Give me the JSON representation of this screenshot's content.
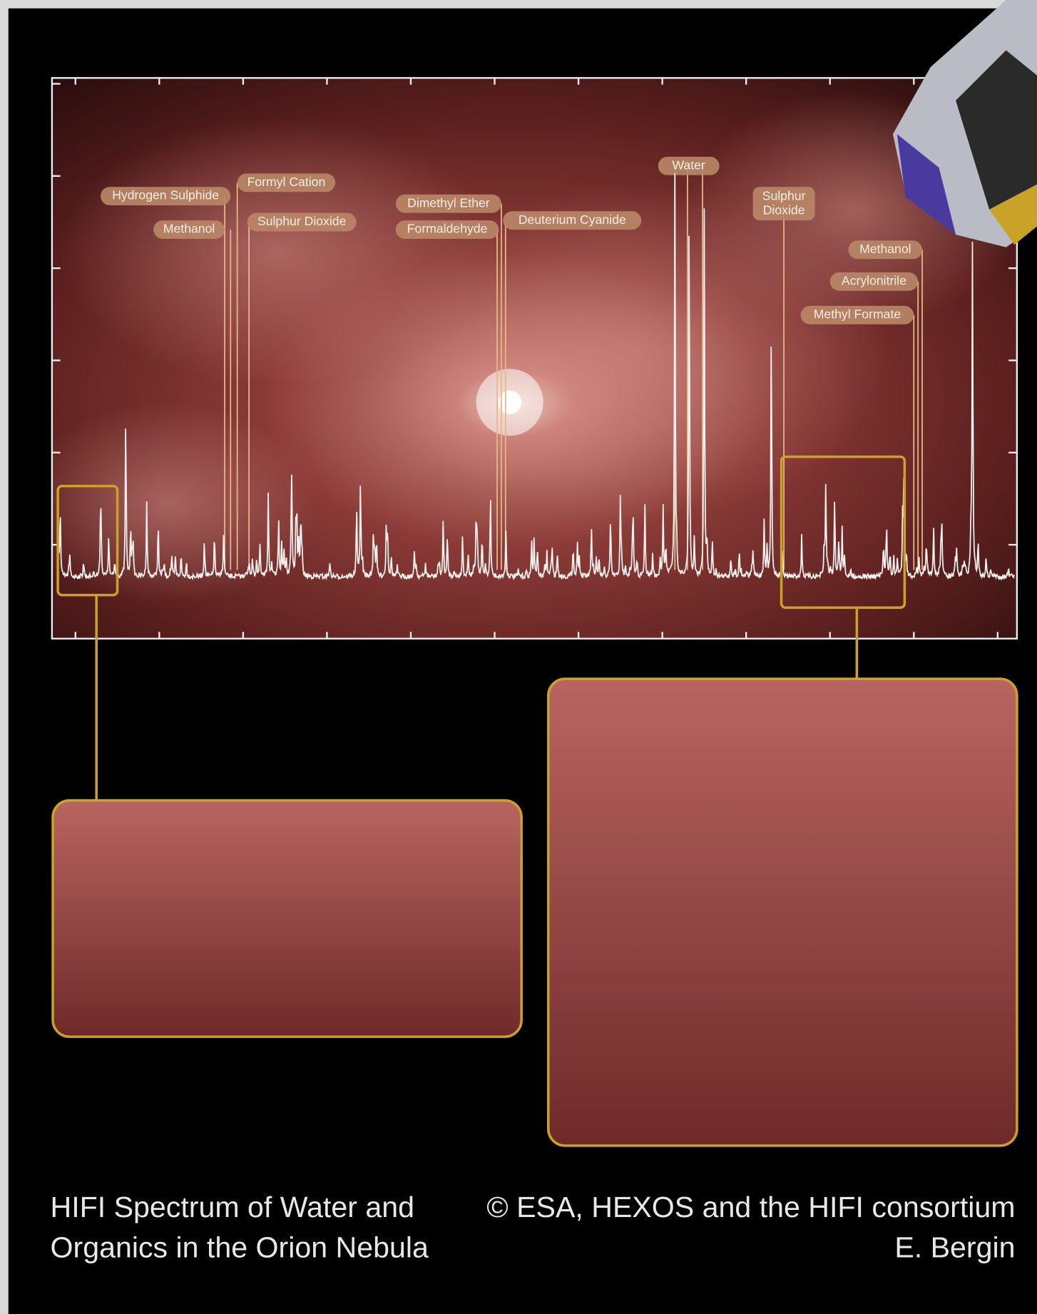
{
  "labels": [
    {
      "lines": [
        "Hydrogen Sulphide"
      ]
    },
    {
      "lines": [
        "Formyl Cation"
      ]
    },
    {
      "lines": [
        "Methanol"
      ]
    },
    {
      "lines": [
        "Sulphur Dioxide"
      ]
    },
    {
      "lines": [
        "Dimethyl Ether"
      ]
    },
    {
      "lines": [
        "Formaldehyde"
      ]
    },
    {
      "lines": [
        "Deuterium Cyanide"
      ]
    },
    {
      "lines": [
        "Water"
      ]
    },
    {
      "lines": [
        "Sulphur",
        "Dioxide"
      ]
    },
    {
      "lines": [
        "Methanol"
      ]
    },
    {
      "lines": [
        "Acrylonitrile"
      ]
    },
    {
      "lines": [
        "Methyl Formate"
      ]
    }
  ],
  "caption": {
    "title_lines": [
      "HIFI Spectrum of Water and",
      "Organics in the Orion Nebula"
    ],
    "credit_lines": [
      "© ESA, HEXOS and the HIFI consortium",
      "E. Bergin"
    ]
  }
}
